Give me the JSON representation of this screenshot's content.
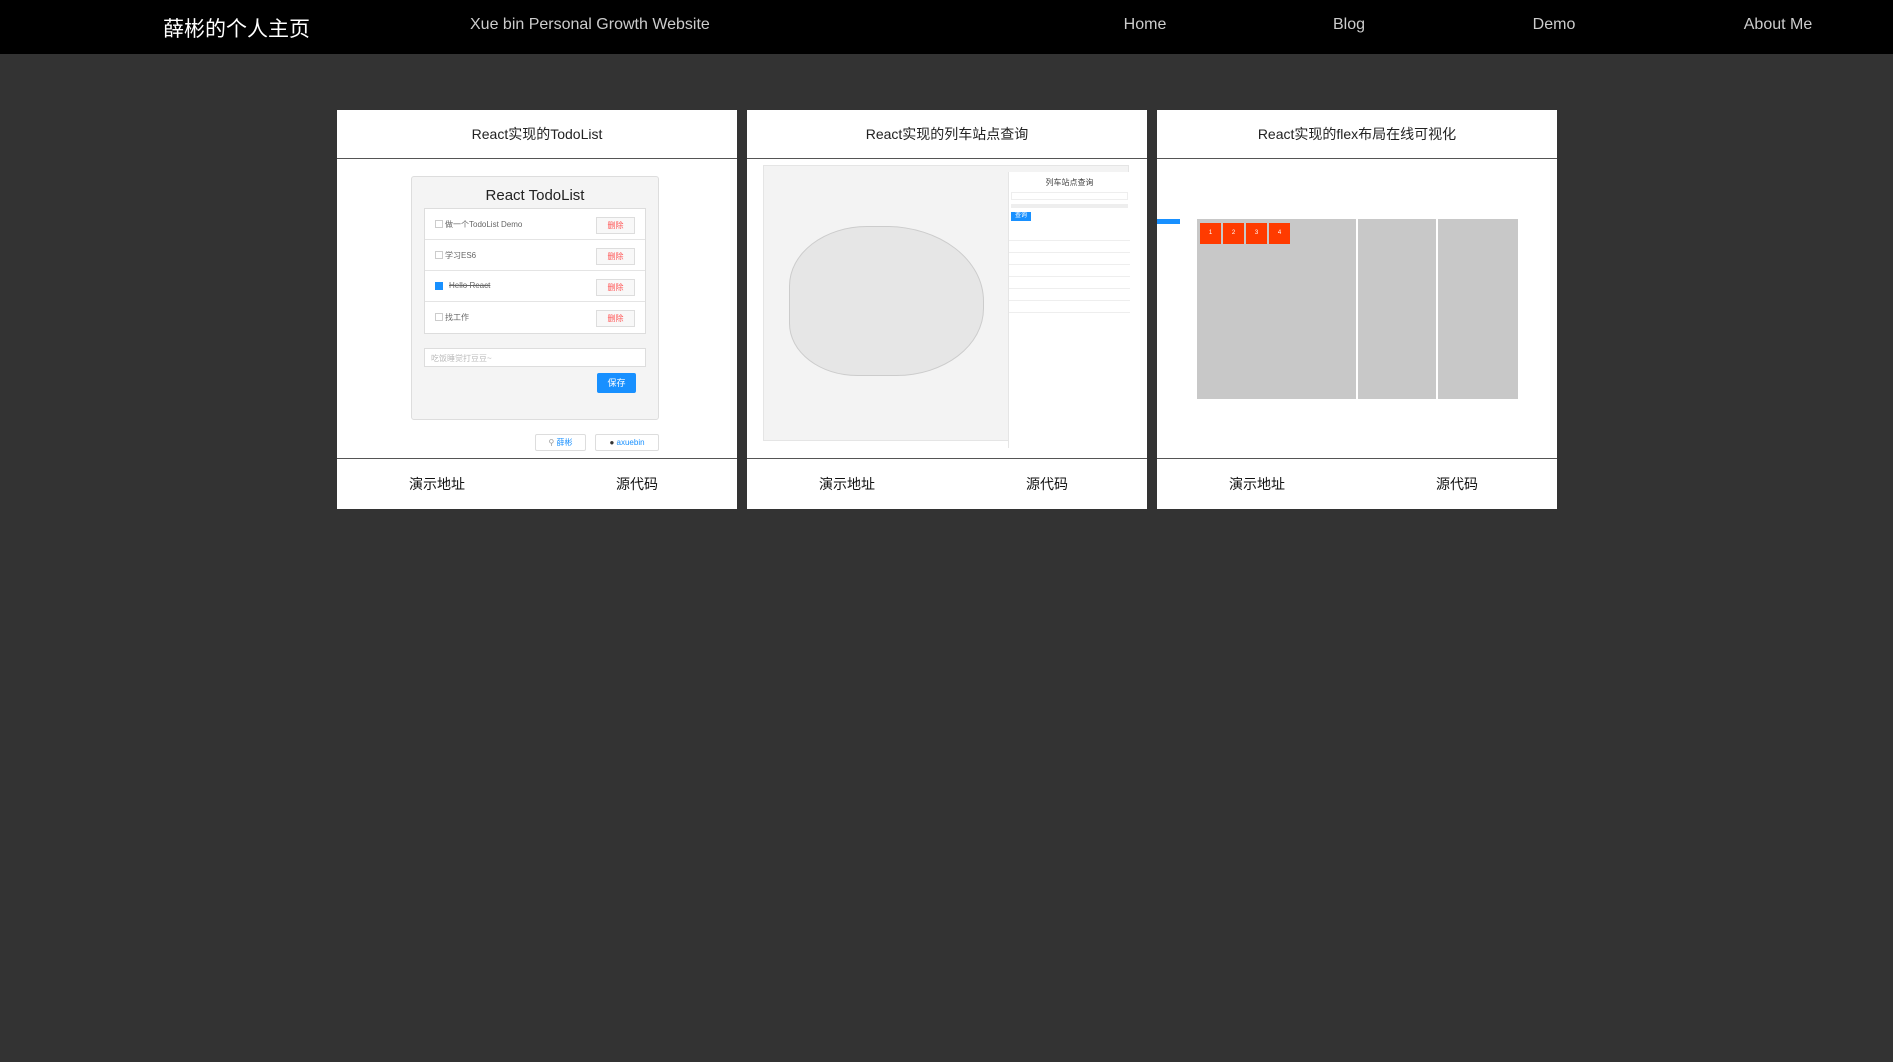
{
  "nav": {
    "brand": "薛彬的个人主页",
    "subtitle": "Xue bin Personal Growth Website",
    "links": [
      "Home",
      "Blog",
      "Demo",
      "About Me"
    ]
  },
  "cards": [
    {
      "title": "React实现的TodoList",
      "demo": "演示地址",
      "source": "源代码",
      "preview": {
        "heading": "React TodoList",
        "items": [
          {
            "text": "做一个TodoList Demo",
            "done": false
          },
          {
            "text": "学习ES6",
            "done": false
          },
          {
            "text": "Hello React",
            "done": true
          },
          {
            "text": "找工作",
            "done": false
          }
        ],
        "delete_label": "删除",
        "placeholder": "吃饭睡觉打豆豆~",
        "save_label": "保存",
        "author": "薛彬",
        "github": "axuebin"
      }
    },
    {
      "title": "React实现的列车站点查询",
      "demo": "演示地址",
      "source": "源代码",
      "preview": {
        "heading": "列车站点查询",
        "query_label": "查询"
      }
    },
    {
      "title": "React实现的flex布局在线可视化",
      "demo": "演示地址",
      "source": "源代码",
      "preview": {
        "boxes": [
          "1",
          "2",
          "3",
          "4"
        ]
      }
    }
  ],
  "colors": {
    "accent": "#1890ff",
    "flex_box": "#ff3b00",
    "background": "#333333"
  }
}
